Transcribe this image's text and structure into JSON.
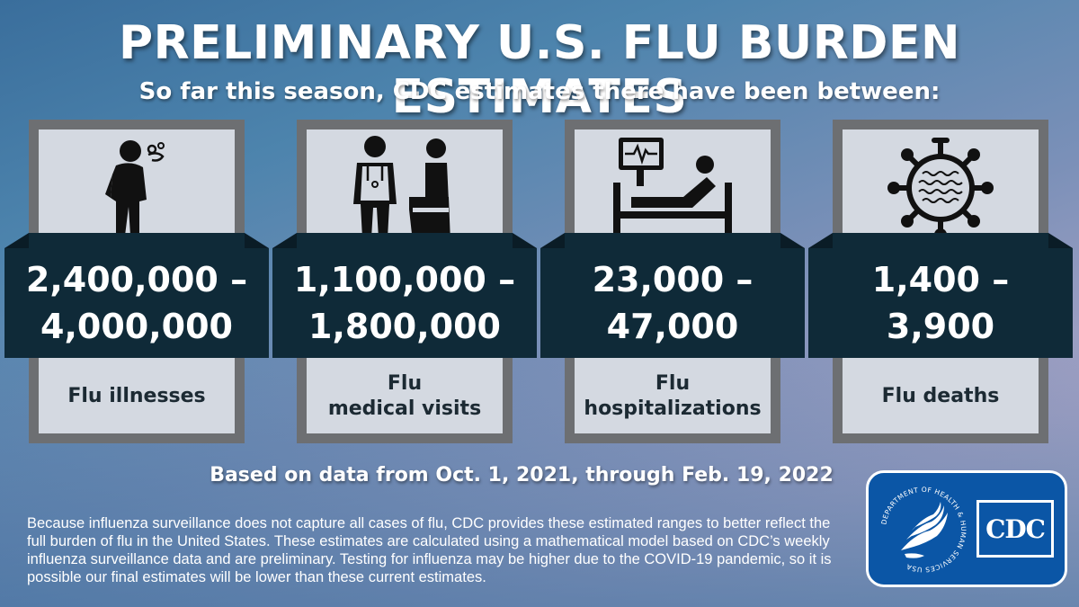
{
  "header": {
    "title": "PRELIMINARY U.S. FLU BURDEN ESTIMATES",
    "subtitle": "So far this season, CDC estimates there have been between:"
  },
  "cards": [
    {
      "range_low": "2,400,000 –",
      "range_high": "4,000,000",
      "label_line1": "Flu illnesses",
      "label_line2": "",
      "icon": "sick-person-icon"
    },
    {
      "range_low": "1,100,000 –",
      "range_high": "1,800,000",
      "label_line1": "Flu",
      "label_line2": "medical visits",
      "icon": "doctor-patient-icon"
    },
    {
      "range_low": "23,000 –",
      "range_high": "47,000",
      "label_line1": "Flu",
      "label_line2": "hospitalizations",
      "icon": "hospital-bed-icon"
    },
    {
      "range_low": "1,400 –",
      "range_high": "3,900",
      "label_line1": "Flu deaths",
      "label_line2": "",
      "icon": "virus-icon"
    }
  ],
  "footer": {
    "based_on": "Based on data from Oct. 1, 2021, through Feb. 19, 2022",
    "disclaimer": "Because influenza surveillance does not capture all cases of flu, CDC provides these estimated ranges to better reflect the full burden of flu in the United States. These estimates are calculated using a mathematical model based on CDC’s weekly influenza surveillance data and are preliminary. Testing for influenza may be higher due to the COVID-19 pandemic, so it is possible our final estimates will be lower than these current estimates."
  },
  "logo": {
    "seal_text": "DEPARTMENT OF HEALTH & HUMAN SERVICES USA",
    "cdc_text": "CDC"
  },
  "colors": {
    "band": "#0f2a38",
    "panel": "#d4d9e1",
    "frame": "#6d6f72",
    "logo_blue": "#0b56a6"
  }
}
